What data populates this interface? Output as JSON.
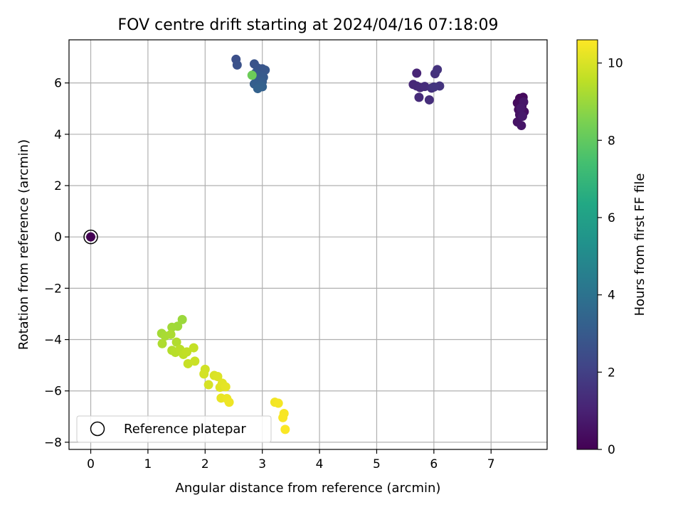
{
  "chart_data": {
    "type": "scatter",
    "title": "FOV centre drift starting at 2024/04/16 07:18:09",
    "xlabel": "Angular distance from reference (arcmin)",
    "ylabel": "Rotation from reference (arcmin)",
    "xlim": [
      -0.38,
      7.98
    ],
    "ylim": [
      -8.28,
      7.68
    ],
    "xticks": [
      0,
      1,
      2,
      3,
      4,
      5,
      6,
      7
    ],
    "yticks": [
      -8,
      -6,
      -4,
      -2,
      0,
      2,
      4,
      6
    ],
    "grid": true,
    "legend": {
      "placement": "lower-left",
      "entries": [
        "Reference platepar"
      ]
    },
    "colorbar": {
      "label": "Hours from first FF file",
      "range": [
        0,
        10.6
      ],
      "ticks": [
        0,
        2,
        4,
        6,
        8,
        10
      ],
      "colormap": "viridis"
    },
    "reference_point": {
      "x": 0,
      "y": 0,
      "hours": 0
    },
    "series": [
      {
        "points": [
          {
            "x": 7.5,
            "y": 5.4,
            "h": 0.2
          },
          {
            "x": 7.56,
            "y": 5.44,
            "h": 0.25
          },
          {
            "x": 7.46,
            "y": 5.22,
            "h": 0.3
          },
          {
            "x": 7.54,
            "y": 5.1,
            "h": 0.35
          },
          {
            "x": 7.48,
            "y": 4.96,
            "h": 0.4
          },
          {
            "x": 7.58,
            "y": 4.88,
            "h": 0.45
          },
          {
            "x": 7.5,
            "y": 4.76,
            "h": 0.5
          },
          {
            "x": 7.46,
            "y": 4.48,
            "h": 0.55
          },
          {
            "x": 7.53,
            "y": 4.34,
            "h": 0.6
          },
          {
            "x": 7.57,
            "y": 5.26,
            "h": 0.65
          },
          {
            "x": 7.52,
            "y": 5.02,
            "h": 0.7
          },
          {
            "x": 7.55,
            "y": 4.7,
            "h": 0.75
          },
          {
            "x": 5.7,
            "y": 6.38,
            "h": 1.1
          },
          {
            "x": 5.64,
            "y": 5.94,
            "h": 1.15
          },
          {
            "x": 5.7,
            "y": 5.88,
            "h": 1.2
          },
          {
            "x": 5.76,
            "y": 5.82,
            "h": 1.25
          },
          {
            "x": 5.74,
            "y": 5.44,
            "h": 1.3
          },
          {
            "x": 5.84,
            "y": 5.86,
            "h": 1.35
          },
          {
            "x": 5.92,
            "y": 5.34,
            "h": 1.4
          },
          {
            "x": 5.96,
            "y": 5.8,
            "h": 1.45
          },
          {
            "x": 6.02,
            "y": 6.36,
            "h": 1.5
          },
          {
            "x": 6.06,
            "y": 6.52,
            "h": 1.55
          },
          {
            "x": 6.1,
            "y": 5.88,
            "h": 1.6
          },
          {
            "x": 6.0,
            "y": 5.84,
            "h": 1.65
          },
          {
            "x": 2.54,
            "y": 6.92,
            "h": 2.6
          },
          {
            "x": 2.56,
            "y": 6.7,
            "h": 2.65
          },
          {
            "x": 2.86,
            "y": 6.74,
            "h": 2.7
          },
          {
            "x": 2.92,
            "y": 6.58,
            "h": 2.75
          },
          {
            "x": 3.0,
            "y": 6.55,
            "h": 2.8
          },
          {
            "x": 3.05,
            "y": 6.5,
            "h": 2.85
          },
          {
            "x": 2.88,
            "y": 6.38,
            "h": 2.9
          },
          {
            "x": 2.96,
            "y": 6.28,
            "h": 2.95
          },
          {
            "x": 3.02,
            "y": 6.22,
            "h": 3.0
          },
          {
            "x": 2.9,
            "y": 6.16,
            "h": 3.05
          },
          {
            "x": 3.0,
            "y": 6.05,
            "h": 3.1
          },
          {
            "x": 2.86,
            "y": 5.96,
            "h": 3.15
          },
          {
            "x": 2.96,
            "y": 5.92,
            "h": 3.2
          },
          {
            "x": 3.0,
            "y": 5.85,
            "h": 3.25
          },
          {
            "x": 2.92,
            "y": 5.78,
            "h": 3.3
          },
          {
            "x": 2.82,
            "y": 6.3,
            "h": 8.2
          },
          {
            "x": 1.6,
            "y": -3.22,
            "h": 9.0
          },
          {
            "x": 1.52,
            "y": -3.48,
            "h": 9.05
          },
          {
            "x": 1.42,
            "y": -3.52,
            "h": 9.1
          },
          {
            "x": 1.24,
            "y": -3.76,
            "h": 9.15
          },
          {
            "x": 1.3,
            "y": -3.86,
            "h": 9.2
          },
          {
            "x": 1.4,
            "y": -3.8,
            "h": 9.25
          },
          {
            "x": 1.25,
            "y": -4.16,
            "h": 9.3
          },
          {
            "x": 1.5,
            "y": -4.1,
            "h": 9.35
          },
          {
            "x": 1.42,
            "y": -4.42,
            "h": 9.4
          },
          {
            "x": 1.48,
            "y": -4.5,
            "h": 9.45
          },
          {
            "x": 1.56,
            "y": -4.38,
            "h": 9.5
          },
          {
            "x": 1.62,
            "y": -4.58,
            "h": 9.55
          },
          {
            "x": 1.68,
            "y": -4.48,
            "h": 9.6
          },
          {
            "x": 1.8,
            "y": -4.32,
            "h": 9.65
          },
          {
            "x": 1.7,
            "y": -4.94,
            "h": 9.7
          },
          {
            "x": 1.82,
            "y": -4.84,
            "h": 9.75
          },
          {
            "x": 2.0,
            "y": -5.16,
            "h": 9.85
          },
          {
            "x": 1.98,
            "y": -5.34,
            "h": 9.9
          },
          {
            "x": 2.06,
            "y": -5.76,
            "h": 9.95
          },
          {
            "x": 2.16,
            "y": -5.4,
            "h": 10.0
          },
          {
            "x": 2.22,
            "y": -5.44,
            "h": 10.05
          },
          {
            "x": 2.26,
            "y": -5.86,
            "h": 10.1
          },
          {
            "x": 2.3,
            "y": -5.7,
            "h": 10.15
          },
          {
            "x": 2.36,
            "y": -5.84,
            "h": 10.2
          },
          {
            "x": 2.28,
            "y": -6.28,
            "h": 10.25
          },
          {
            "x": 2.38,
            "y": -6.3,
            "h": 10.3
          },
          {
            "x": 2.42,
            "y": -6.44,
            "h": 10.35
          },
          {
            "x": 3.22,
            "y": -6.44,
            "h": 10.4
          },
          {
            "x": 3.28,
            "y": -6.48,
            "h": 10.45
          },
          {
            "x": 3.38,
            "y": -6.88,
            "h": 10.5
          },
          {
            "x": 3.36,
            "y": -7.04,
            "h": 10.52
          },
          {
            "x": 3.4,
            "y": -7.5,
            "h": 10.55
          }
        ]
      }
    ]
  }
}
